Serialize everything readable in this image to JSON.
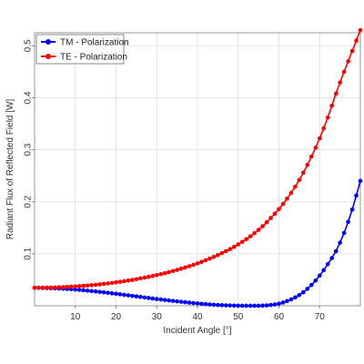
{
  "chart_data": {
    "type": "line",
    "xlabel": "Incident Angle [°]",
    "ylabel": "Radiant Flux of Reflected Field [W]",
    "xlim": [
      0,
      80
    ],
    "ylim": [
      0,
      0.525
    ],
    "xticks": [
      10,
      20,
      30,
      40,
      50,
      60,
      70
    ],
    "yticks": [
      0.1,
      0.2,
      0.3,
      0.4,
      0.5
    ],
    "grid": true,
    "legend_position": "top-left",
    "marker": "circle",
    "x": [
      0,
      5,
      10,
      15,
      20,
      25,
      30,
      35,
      40,
      45,
      50,
      55,
      60,
      62,
      64,
      66,
      68,
      70,
      72,
      74,
      76,
      78,
      80
    ],
    "series": [
      {
        "name": "TM - Polarization",
        "color": "#0000ff",
        "values": [
          0.0345,
          0.0335,
          0.0312,
          0.0275,
          0.023,
          0.018,
          0.013,
          0.0085,
          0.0045,
          0.0015,
          0.0002,
          0.0001,
          0.004,
          0.009,
          0.016,
          0.026,
          0.04,
          0.058,
          0.08,
          0.105,
          0.14,
          0.185,
          0.24
        ]
      },
      {
        "name": "TE - Polarization",
        "color": "#ff0000",
        "values": [
          0.0345,
          0.0352,
          0.0372,
          0.0404,
          0.045,
          0.0512,
          0.059,
          0.069,
          0.0815,
          0.0975,
          0.118,
          0.146,
          0.186,
          0.206,
          0.229,
          0.256,
          0.287,
          0.322,
          0.362,
          0.408,
          0.45,
          0.49,
          0.53
        ]
      }
    ]
  }
}
